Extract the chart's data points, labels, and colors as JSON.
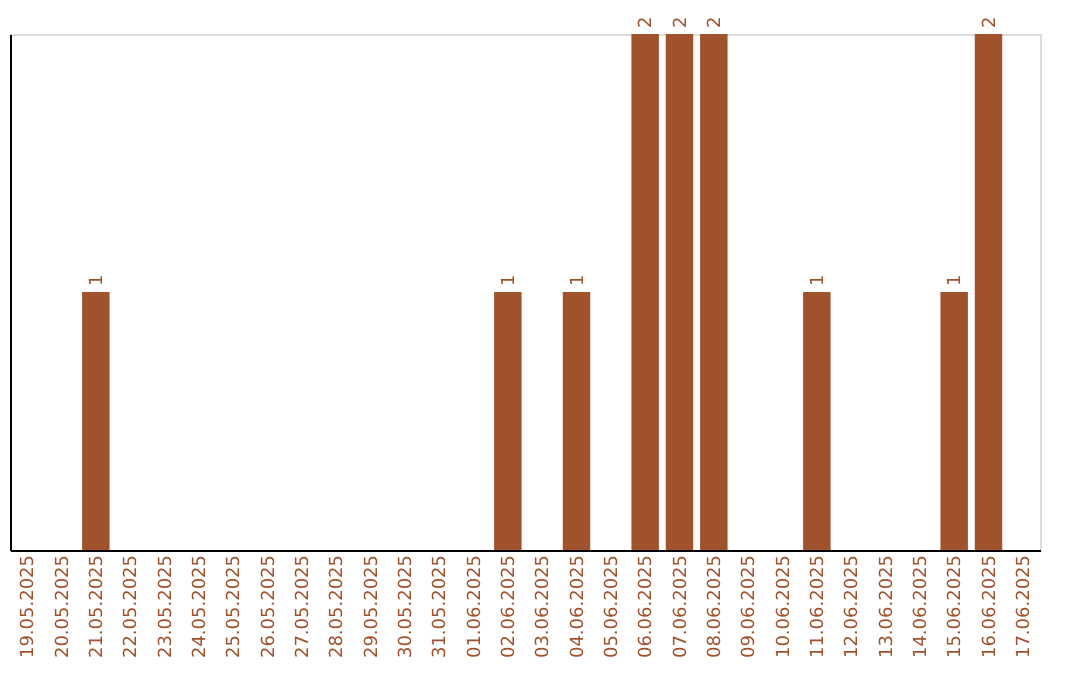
{
  "chart_data": {
    "type": "bar",
    "categories": [
      "19.05.2025",
      "20.05.2025",
      "21.05.2025",
      "22.05.2025",
      "23.05.2025",
      "24.05.2025",
      "25.05.2025",
      "26.05.2025",
      "27.05.2025",
      "28.05.2025",
      "29.05.2025",
      "30.05.2025",
      "31.05.2025",
      "01.06.2025",
      "02.06.2025",
      "03.06.2025",
      "04.06.2025",
      "05.06.2025",
      "06.06.2025",
      "07.06.2025",
      "08.06.2025",
      "09.06.2025",
      "10.06.2025",
      "11.06.2025",
      "12.06.2025",
      "13.06.2025",
      "14.06.2025",
      "15.06.2025",
      "16.06.2025",
      "17.06.2025"
    ],
    "series": [
      {
        "color": "#a0522d",
        "values": [
          0,
          0,
          1,
          0,
          0,
          0,
          0,
          0,
          0,
          0,
          0,
          0,
          0,
          0,
          1,
          0,
          1,
          0,
          2,
          2,
          2,
          0,
          0,
          1,
          0,
          0,
          0,
          1,
          2,
          0
        ],
        "value_labels": [
          null,
          null,
          "1",
          null,
          null,
          null,
          null,
          null,
          null,
          null,
          null,
          null,
          null,
          null,
          "1",
          null,
          "1",
          null,
          "2",
          "2",
          "2",
          null,
          null,
          "1",
          null,
          null,
          null,
          "1",
          "2",
          null
        ]
      }
    ],
    "tick_labels": "x",
    "grid": false
  }
}
